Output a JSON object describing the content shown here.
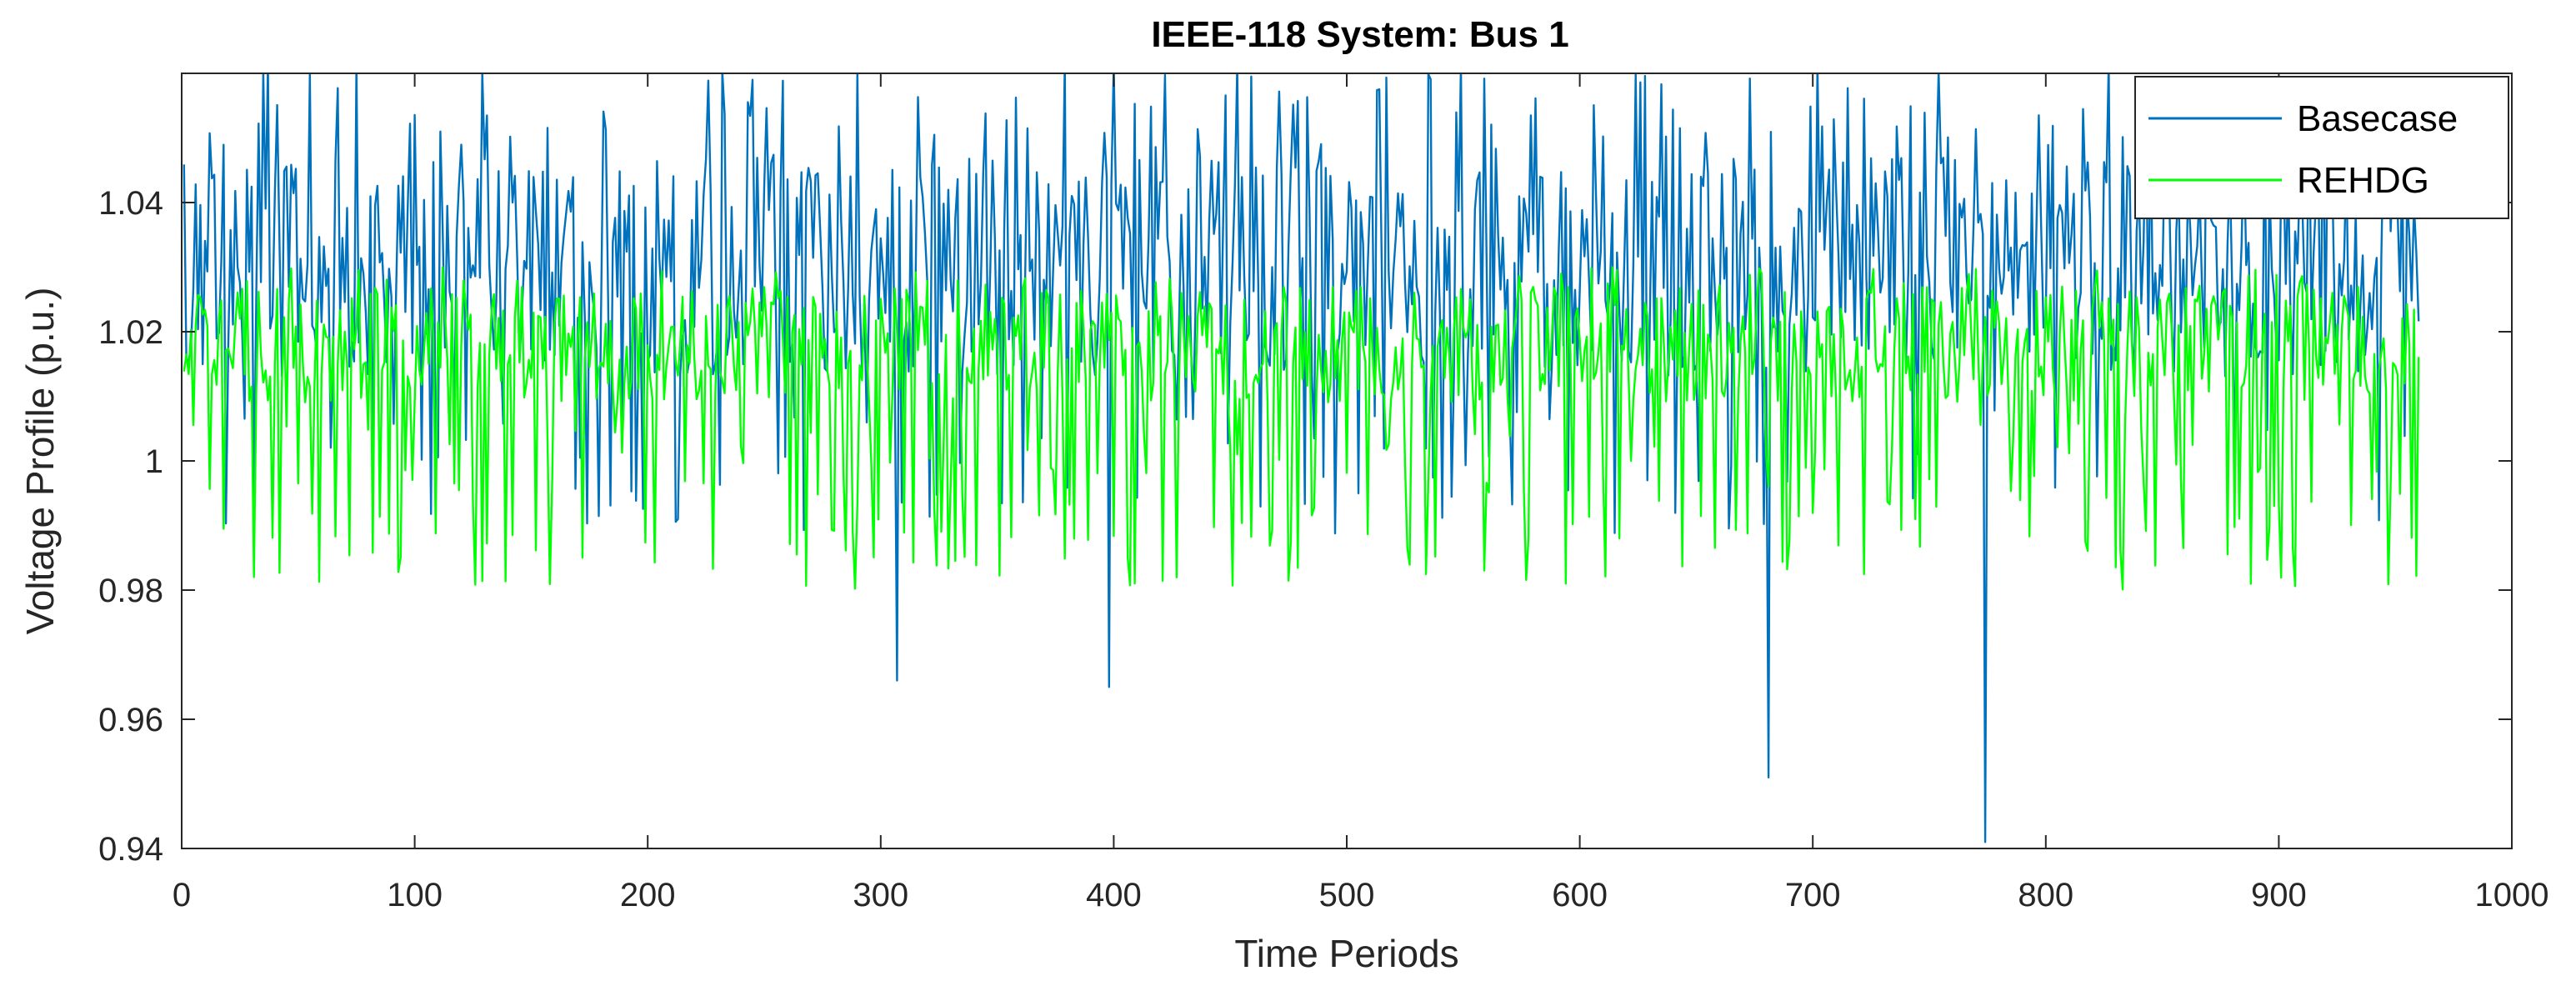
{
  "chart_data": {
    "type": "line",
    "title": "IEEE-118 System: Bus 1",
    "xlabel": "Time Periods",
    "ylabel": "Voltage Profile (p.u.)",
    "xlim": [
      0,
      1000
    ],
    "ylim": [
      0.94,
      1.06
    ],
    "xticks": [
      0,
      100,
      200,
      300,
      400,
      500,
      600,
      700,
      800,
      900,
      1000
    ],
    "yticks": [
      0.94,
      0.96,
      0.98,
      1.0,
      1.02,
      1.04
    ],
    "xtick_labels": [
      "0",
      "100",
      "200",
      "300",
      "400",
      "500",
      "600",
      "700",
      "800",
      "900",
      "1000"
    ],
    "ytick_labels": [
      "0.94",
      "0.96",
      "0.98",
      "1",
      "1.02",
      "1.04"
    ],
    "grid": false,
    "legend_position": "top-right",
    "n_points": 960,
    "series": [
      {
        "name": "Basecase",
        "color": "#0072BD",
        "mean": 1.03,
        "typical_range": [
          0.99,
          1.06
        ],
        "notable_points": [
          {
            "x": 307,
            "y": 0.966
          },
          {
            "x": 398,
            "y": 0.965
          },
          {
            "x": 681,
            "y": 0.951
          },
          {
            "x": 774,
            "y": 0.941
          }
        ]
      },
      {
        "name": "REHDG",
        "color": "#00FF00",
        "mean": 1.018,
        "typical_range": [
          0.98,
          1.03
        ]
      }
    ]
  }
}
